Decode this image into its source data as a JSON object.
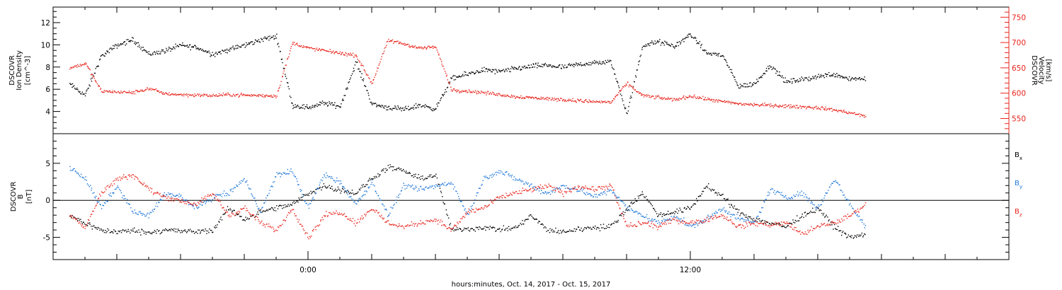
{
  "chart_data": {
    "type": "scatter",
    "xlabel": "hours:minutes, Oct. 14, 2017 - Oct. 15, 2017",
    "x_unit": "hours relative to 00:00 UTC Oct. 15, 2017",
    "xlim": [
      -8,
      22
    ],
    "x_tick_labels": [
      {
        "x": 0,
        "label": "0:00"
      },
      {
        "x": 12,
        "label": "12:00"
      }
    ],
    "panels": [
      {
        "id": "top",
        "ylabel_left": [
          "DSCOVR",
          "Ion Density",
          "[cm^-3]"
        ],
        "ylabel_right": [
          "DSCOVR",
          "Velocity",
          "[km/s]"
        ],
        "ylim_left": [
          2,
          13.4
        ],
        "left_ticks": [
          4,
          6,
          8,
          10,
          12
        ],
        "ylim_right": [
          520,
          770
        ],
        "right_ticks": [
          550,
          600,
          650,
          700,
          750
        ],
        "series": [
          {
            "name": "Ion Density",
            "axis": "left",
            "color": "#000000",
            "x": [
              -7.5,
              -7.0,
              -6.5,
              -6.0,
              -5.5,
              -5.0,
              -4.5,
              -4.0,
              -3.5,
              -3.0,
              -2.5,
              -2.0,
              -1.5,
              -1.0,
              -0.5,
              0.0,
              0.5,
              1.0,
              1.5,
              2.0,
              2.5,
              3.0,
              3.5,
              4.0,
              4.5,
              5.0,
              5.5,
              6.0,
              6.5,
              7.0,
              7.5,
              8.0,
              8.5,
              9.0,
              9.5,
              10.0,
              10.5,
              11.0,
              11.5,
              12.0,
              12.5,
              13.0,
              13.5,
              14.0,
              14.5,
              15.0,
              15.5,
              16.0,
              16.5,
              17.0,
              17.5
            ],
            "y": [
              6.5,
              5.5,
              9.0,
              10.0,
              10.5,
              9.2,
              9.5,
              10.0,
              9.8,
              9.2,
              9.6,
              10.0,
              10.5,
              10.8,
              4.6,
              4.4,
              4.8,
              4.5,
              8.5,
              4.7,
              4.4,
              4.2,
              4.6,
              4.3,
              7.0,
              7.4,
              7.8,
              7.6,
              7.9,
              8.1,
              8.2,
              8.0,
              8.3,
              8.4,
              8.5,
              3.8,
              10.0,
              10.3,
              9.9,
              11.0,
              9.3,
              9.1,
              6.3,
              6.5,
              8.2,
              6.7,
              6.9,
              7.2,
              7.4,
              7.0,
              7.0
            ]
          },
          {
            "name": "Velocity",
            "axis": "right",
            "color": "#e8241c",
            "x": [
              -7.5,
              -7.0,
              -6.5,
              -6.0,
              -5.5,
              -5.0,
              -4.5,
              -4.0,
              -3.5,
              -3.0,
              -2.5,
              -2.0,
              -1.5,
              -1.0,
              -0.5,
              0.0,
              0.5,
              1.0,
              1.5,
              2.0,
              2.5,
              3.0,
              3.5,
              4.0,
              4.5,
              5.0,
              5.5,
              6.0,
              6.5,
              7.0,
              7.5,
              8.0,
              8.5,
              9.0,
              9.5,
              10.0,
              10.5,
              11.0,
              11.5,
              12.0,
              12.5,
              13.0,
              13.5,
              14.0,
              14.5,
              15.0,
              15.5,
              16.0,
              16.5,
              17.0,
              17.5
            ],
            "y": [
              650,
              660,
              605,
              603,
              602,
              610,
              600,
              598,
              597,
              596,
              598,
              597,
              596,
              595,
              700,
              690,
              685,
              680,
              675,
              620,
              705,
              698,
              690,
              692,
              607,
              605,
              602,
              598,
              594,
              592,
              590,
              588,
              586,
              584,
              583,
              620,
              596,
              592,
              588,
              595,
              589,
              584,
              580,
              578,
              577,
              575,
              574,
              572,
              568,
              562,
              555
            ]
          }
        ]
      },
      {
        "id": "bottom",
        "ylabel_left": [
          "DSCOVR",
          "B",
          "[nT]"
        ],
        "ylim": [
          -8,
          9
        ],
        "left_ticks": [
          -5,
          0,
          5
        ],
        "zero_line": true,
        "legend_position": "right",
        "series": [
          {
            "name": "Bx",
            "color": "#000000",
            "x": [
              -7.5,
              -7.0,
              -6.5,
              -6.0,
              -5.5,
              -5.0,
              -4.5,
              -4.0,
              -3.5,
              -3.0,
              -2.5,
              -2.0,
              -1.5,
              -1.0,
              -0.5,
              0.0,
              0.5,
              1.0,
              1.5,
              2.0,
              2.5,
              3.0,
              3.5,
              4.0,
              4.5,
              5.0,
              5.5,
              6.0,
              6.5,
              7.0,
              7.5,
              8.0,
              8.5,
              9.0,
              9.5,
              10.0,
              10.5,
              11.0,
              11.5,
              12.0,
              12.5,
              13.0,
              13.5,
              14.0,
              14.5,
              15.0,
              15.5,
              16.0,
              16.5,
              17.0,
              17.5
            ],
            "y": [
              -2.0,
              -3.0,
              -4.0,
              -4.2,
              -4.0,
              -4.3,
              -3.9,
              -4.1,
              -4.2,
              -4.0,
              -1.0,
              -2.5,
              -1.5,
              -1.0,
              -0.5,
              1.0,
              2.0,
              1.5,
              1.0,
              3.0,
              4.5,
              4.0,
              3.0,
              3.5,
              -4.0,
              -3.8,
              -3.6,
              -3.9,
              -3.7,
              -2.0,
              -4.0,
              -4.2,
              -3.8,
              -3.6,
              -3.5,
              -1.0,
              1.0,
              -2.0,
              -1.5,
              -1.0,
              2.0,
              0.5,
              -1.5,
              -2.5,
              -3.0,
              -3.5,
              -2.0,
              -1.0,
              -3.5,
              -5.0,
              -4.5
            ]
          },
          {
            "name": "By",
            "color": "#1f77d8",
            "x": [
              -7.5,
              -7.0,
              -6.5,
              -6.0,
              -5.5,
              -5.0,
              -4.5,
              -4.0,
              -3.5,
              -3.0,
              -2.5,
              -2.0,
              -1.5,
              -1.0,
              -0.5,
              0.0,
              0.5,
              1.0,
              1.5,
              2.0,
              2.5,
              3.0,
              3.5,
              4.0,
              4.5,
              5.0,
              5.5,
              6.0,
              6.5,
              7.0,
              7.5,
              8.0,
              8.5,
              9.0,
              9.5,
              10.0,
              10.5,
              11.0,
              11.5,
              12.0,
              12.5,
              13.0,
              13.5,
              14.0,
              14.5,
              15.0,
              15.5,
              16.0,
              16.5,
              17.0,
              17.5
            ],
            "y": [
              4.5,
              3.0,
              -1.0,
              2.0,
              -1.5,
              -2.0,
              1.0,
              0.5,
              -1.0,
              0.5,
              1.0,
              3.0,
              -1.5,
              3.5,
              4.0,
              -1.0,
              3.5,
              2.5,
              -0.5,
              2.5,
              -2.0,
              2.0,
              1.5,
              2.0,
              2.5,
              -2.0,
              3.0,
              4.0,
              3.0,
              2.0,
              1.0,
              2.0,
              1.5,
              0.5,
              1.5,
              -1.0,
              -2.0,
              -3.0,
              -2.0,
              -3.5,
              -2.5,
              -1.0,
              -2.5,
              -3.0,
              1.5,
              0.5,
              1.0,
              -1.0,
              3.0,
              -0.5,
              -3.5
            ]
          },
          {
            "name": "Bz",
            "color": "#e8241c",
            "x": [
              -7.5,
              -7.0,
              -6.5,
              -6.0,
              -5.5,
              -5.0,
              -4.5,
              -4.0,
              -3.5,
              -3.0,
              -2.5,
              -2.0,
              -1.5,
              -1.0,
              -0.5,
              0.0,
              0.5,
              1.0,
              1.5,
              2.0,
              2.5,
              3.0,
              3.5,
              4.0,
              4.5,
              5.0,
              5.5,
              6.0,
              6.5,
              7.0,
              7.5,
              8.0,
              8.5,
              9.0,
              9.5,
              10.0,
              10.5,
              11.0,
              11.5,
              12.0,
              12.5,
              13.0,
              13.5,
              14.0,
              14.5,
              15.0,
              15.5,
              16.0,
              16.5,
              17.0,
              17.5
            ],
            "y": [
              -2.0,
              -3.5,
              1.0,
              3.0,
              3.5,
              1.5,
              0.5,
              0.0,
              -0.5,
              1.0,
              -2.0,
              -1.0,
              -3.0,
              -4.0,
              -1.0,
              -5.0,
              -2.0,
              -1.5,
              -3.0,
              -1.0,
              -3.0,
              -3.5,
              -3.0,
              -2.5,
              -4.0,
              -1.5,
              -1.0,
              0.5,
              1.0,
              1.5,
              2.0,
              1.0,
              2.0,
              1.5,
              2.0,
              -3.5,
              -3.0,
              -3.5,
              -2.5,
              -3.0,
              -2.5,
              -2.0,
              -3.5,
              -3.0,
              -3.2,
              -3.0,
              -4.5,
              -3.5,
              -3.0,
              -2.0,
              -0.5
            ]
          }
        ]
      }
    ]
  }
}
